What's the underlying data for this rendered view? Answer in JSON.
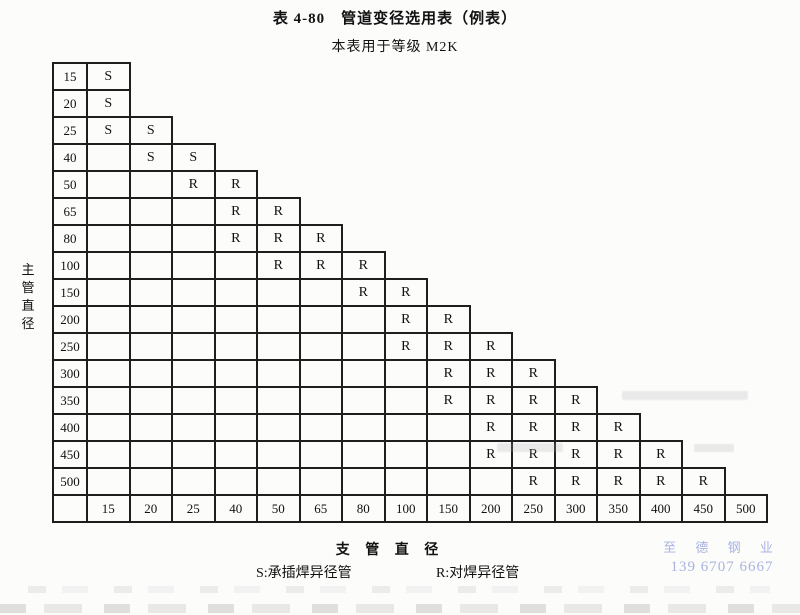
{
  "page": {
    "title": "表 4-80　管道变径选用表（例表）",
    "subtitle": "本表用于等级 M2K"
  },
  "table": {
    "row_axis_label": "主管直径",
    "col_axis_label": "支 管 直 径",
    "branch_sizes": [
      "15",
      "20",
      "25",
      "40",
      "50",
      "65",
      "80",
      "100",
      "150",
      "200",
      "250",
      "300",
      "350",
      "400",
      "450",
      "500"
    ],
    "rows": [
      {
        "main": "15",
        "cells": [
          "S"
        ]
      },
      {
        "main": "20",
        "cells": [
          "S"
        ]
      },
      {
        "main": "25",
        "cells": [
          "S",
          "S"
        ]
      },
      {
        "main": "40",
        "cells": [
          "",
          "S",
          "S"
        ]
      },
      {
        "main": "50",
        "cells": [
          "",
          "",
          "R",
          "R"
        ]
      },
      {
        "main": "65",
        "cells": [
          "",
          "",
          "",
          "R",
          "R"
        ]
      },
      {
        "main": "80",
        "cells": [
          "",
          "",
          "",
          "R",
          "R",
          "R"
        ]
      },
      {
        "main": "100",
        "cells": [
          "",
          "",
          "",
          "",
          "R",
          "R",
          "R"
        ]
      },
      {
        "main": "150",
        "cells": [
          "",
          "",
          "",
          "",
          "",
          "",
          "R",
          "R"
        ]
      },
      {
        "main": "200",
        "cells": [
          "",
          "",
          "",
          "",
          "",
          "",
          "",
          "R",
          "R"
        ]
      },
      {
        "main": "250",
        "cells": [
          "",
          "",
          "",
          "",
          "",
          "",
          "",
          "R",
          "R",
          "R"
        ]
      },
      {
        "main": "300",
        "cells": [
          "",
          "",
          "",
          "",
          "",
          "",
          "",
          "",
          "R",
          "R",
          "R"
        ]
      },
      {
        "main": "350",
        "cells": [
          "",
          "",
          "",
          "",
          "",
          "",
          "",
          "",
          "R",
          "R",
          "R",
          "R"
        ]
      },
      {
        "main": "400",
        "cells": [
          "",
          "",
          "",
          "",
          "",
          "",
          "",
          "",
          "",
          "R",
          "R",
          "R",
          "R"
        ]
      },
      {
        "main": "450",
        "cells": [
          "",
          "",
          "",
          "",
          "",
          "",
          "",
          "",
          "",
          "R",
          "R",
          "R",
          "R",
          "R"
        ]
      },
      {
        "main": "500",
        "cells": [
          "",
          "",
          "",
          "",
          "",
          "",
          "",
          "",
          "",
          "",
          "R",
          "R",
          "R",
          "R",
          "R"
        ]
      }
    ]
  },
  "legend": {
    "s_label": "S:承插焊异径管",
    "r_label": "R:对焊异径管"
  },
  "watermark": {
    "name": "至 德 钢 业",
    "phone": "139 6707 6667",
    "color": "#a9b3e2"
  }
}
